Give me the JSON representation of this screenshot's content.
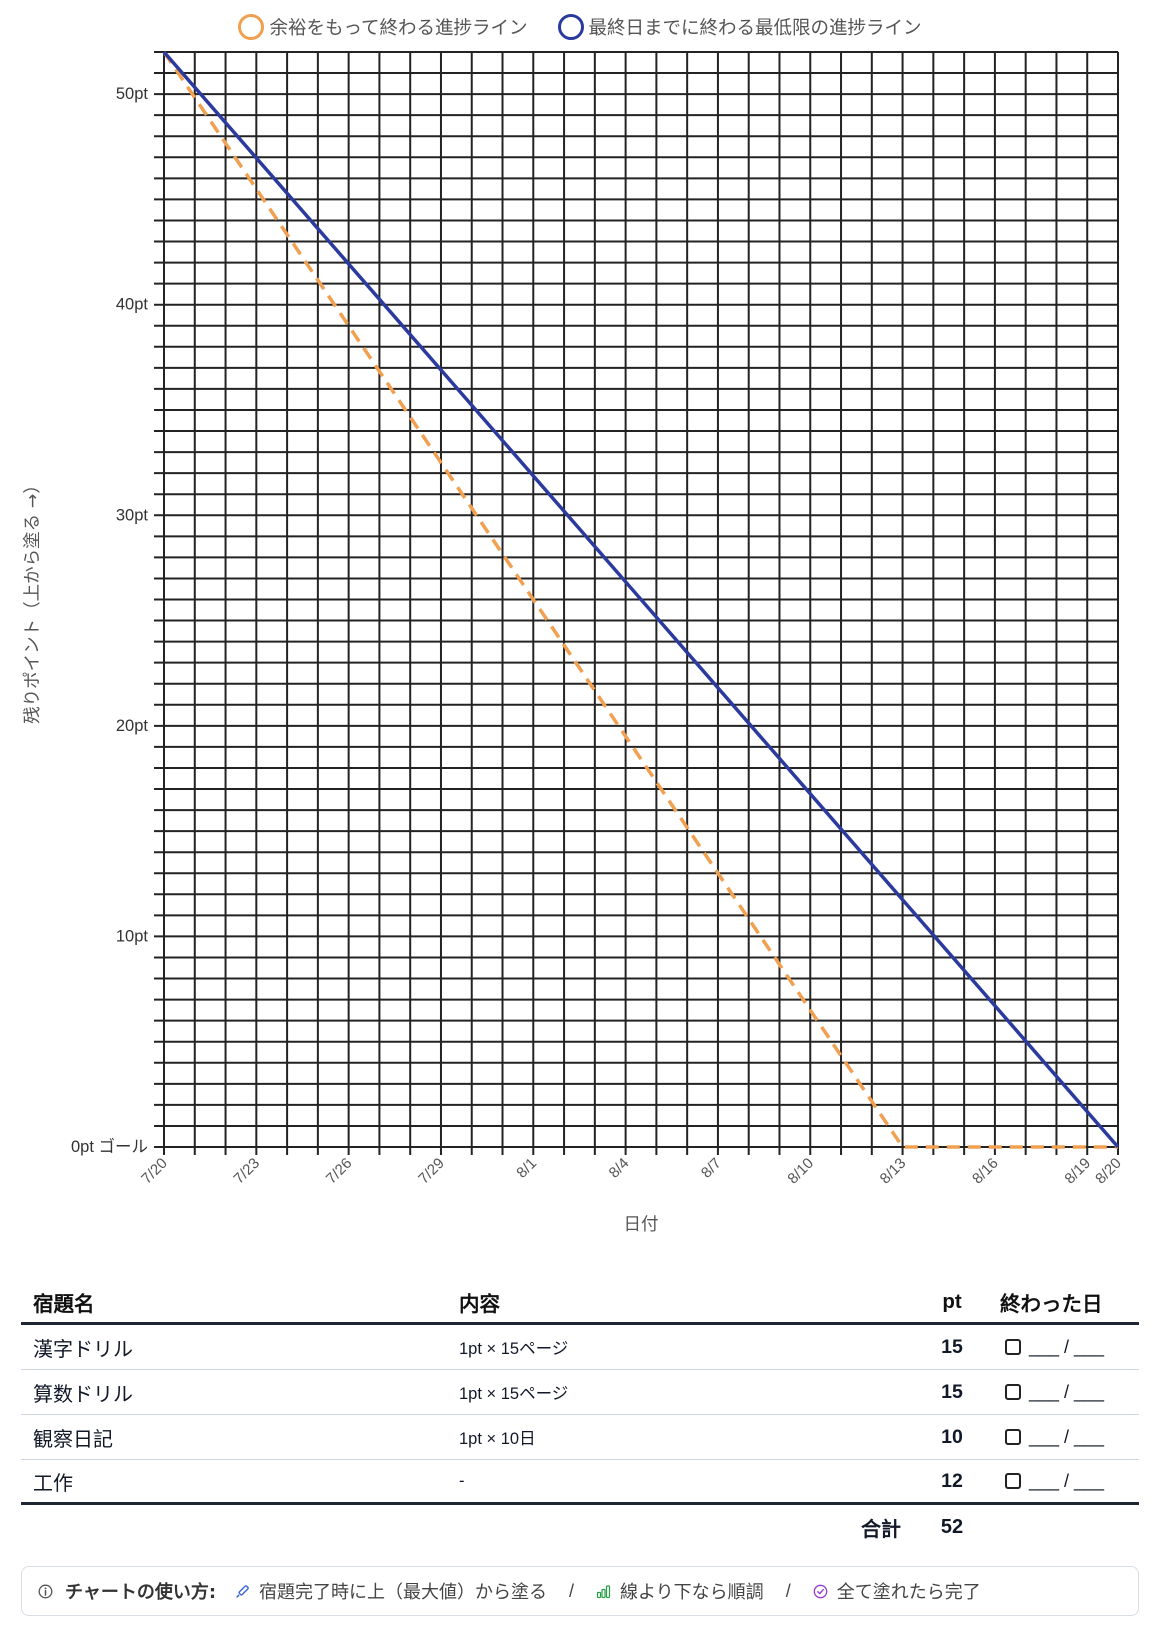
{
  "chart_data": {
    "type": "line",
    "xlabel": "日付",
    "ylabel": "残りポイント（上から塗る →）",
    "xlim": [
      "7/20",
      "8/20"
    ],
    "ylim": [
      0,
      52
    ],
    "x_ticks": [
      "7/20",
      "7/23",
      "7/26",
      "7/29",
      "8/1",
      "8/4",
      "8/7",
      "8/10",
      "8/13",
      "8/16",
      "8/19",
      "8/20"
    ],
    "y_ticks": [
      {
        "value": 0,
        "label": "0pt ゴール"
      },
      {
        "value": 10,
        "label": "10pt"
      },
      {
        "value": 20,
        "label": "20pt"
      },
      {
        "value": 30,
        "label": "30pt"
      },
      {
        "value": 40,
        "label": "40pt"
      },
      {
        "value": 50,
        "label": "50pt"
      }
    ],
    "grid": true,
    "grid_step_x_days": 1,
    "grid_step_y": 1,
    "legend_position": "top",
    "series": [
      {
        "name": "余裕をもって終わる進捗ライン",
        "color": "#F0A050",
        "style": "dashed",
        "points": [
          {
            "x": "7/20",
            "y": 52
          },
          {
            "x": "8/13",
            "y": 0
          },
          {
            "x": "8/20",
            "y": 0
          }
        ]
      },
      {
        "name": "最終日までに終わる最低限の進捗ライン",
        "color": "#2B3A9E",
        "style": "solid",
        "points": [
          {
            "x": "7/20",
            "y": 52
          },
          {
            "x": "8/20",
            "y": 0
          }
        ]
      }
    ]
  },
  "table": {
    "headers": {
      "name": "宿題名",
      "content": "内容",
      "pt": "pt",
      "done": "終わった日"
    },
    "rows": [
      {
        "name": "漢字ドリル",
        "content": "1pt × 15ページ",
        "pt": 15,
        "done": "___ / ___"
      },
      {
        "name": "算数ドリル",
        "content": "1pt × 15ページ",
        "pt": 15,
        "done": "___ / ___"
      },
      {
        "name": "観察日記",
        "content": "1pt × 10日",
        "pt": 10,
        "done": "___ / ___"
      },
      {
        "name": "工作",
        "content": "-",
        "pt": 12,
        "done": "___ / ___"
      }
    ],
    "total": {
      "label": "合計",
      "value": 52
    }
  },
  "footer": {
    "info_icon": "info-icon",
    "info_color": "#555555",
    "title": "チャートの使い方:",
    "separator": "/",
    "items": [
      {
        "icon": "pen-icon",
        "color": "#3B66DC",
        "text": "宿題完了時に上（最大値）から塗る"
      },
      {
        "icon": "bar-chart-icon",
        "color": "#27A048",
        "text": "線より下なら順調"
      },
      {
        "icon": "check-circle-icon",
        "color": "#9A3CD6",
        "text": "全て塗れたら完了"
      }
    ]
  }
}
